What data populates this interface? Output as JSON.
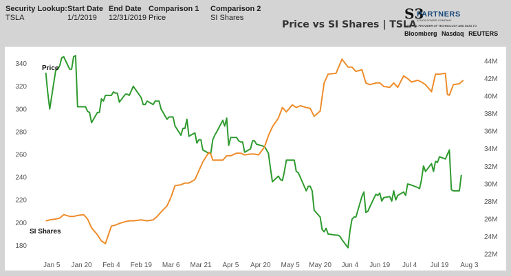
{
  "header": {
    "fields": [
      {
        "label": "Security Lookup:",
        "value": "TSLA"
      },
      {
        "label": "Start Date",
        "value": "1/1/2019"
      },
      {
        "label": "End Date",
        "value": "12/31/2019"
      },
      {
        "label": "Comparison 1",
        "value": "Price"
      },
      {
        "label": "Comparison 2",
        "value": "SI Shares"
      }
    ],
    "title": "Price vs SI Shares | TSLA"
  },
  "brand": {
    "logo_mark": "S3",
    "name": "PARTNERS",
    "tagline": "A DATA POWER COMPANY",
    "provider_line": "OFFICIAL PROVIDER OF TECHNOLOGY AND DATA TO",
    "partners": [
      "Bloomberg",
      "Nasdaq",
      "REUTERS"
    ]
  },
  "chart_data": {
    "type": "line",
    "title": "Price vs SI Shares | TSLA",
    "x_tick_labels": [
      "Jan 5",
      "Jan 20",
      "Feb 4",
      "Feb 19",
      "Mar 6",
      "Mar 21",
      "Apr 5",
      "Apr 20",
      "May 5",
      "May 20",
      "Jun 4",
      "Jun 19",
      "Jul 4",
      "Jul 19",
      "Aug 3"
    ],
    "x_range": [
      "2018-12-29",
      "2019-08-06"
    ],
    "y_left": {
      "ticks": [
        "180",
        "200",
        "220",
        "240",
        "260",
        "280",
        "300",
        "320",
        "340"
      ],
      "range": [
        170,
        350
      ]
    },
    "y_right": {
      "ticks": [
        "22M",
        "24M",
        "26M",
        "28M",
        "30M",
        "32M",
        "34M",
        "36M",
        "38M",
        "40M",
        "42M",
        "44M"
      ],
      "range": [
        21.7,
        45.0
      ]
    },
    "grid": false,
    "legend": "none",
    "annotations": [
      "Price",
      "SI Shares"
    ],
    "series": [
      {
        "label": "Price",
        "axis": "left",
        "color": "#2e9a2e",
        "points": [
          [
            "2019-01-02",
            332
          ],
          [
            "2019-01-03",
            314
          ],
          [
            "2019-01-04",
            300
          ],
          [
            "2019-01-07",
            334
          ],
          [
            "2019-01-08",
            335
          ],
          [
            "2019-01-09",
            338
          ],
          [
            "2019-01-10",
            345
          ],
          [
            "2019-01-11",
            346
          ],
          [
            "2019-01-14",
            335
          ],
          [
            "2019-01-15",
            335
          ],
          [
            "2019-01-16",
            346
          ],
          [
            "2019-01-17",
            347
          ],
          [
            "2019-01-18",
            302
          ],
          [
            "2019-01-22",
            302
          ],
          [
            "2019-01-23",
            298
          ],
          [
            "2019-01-24",
            297
          ],
          [
            "2019-01-25",
            288
          ],
          [
            "2019-01-28",
            297
          ],
          [
            "2019-01-29",
            297
          ],
          [
            "2019-01-30",
            309
          ],
          [
            "2019-01-31",
            307
          ],
          [
            "2019-02-01",
            312
          ],
          [
            "2019-02-04",
            312
          ],
          [
            "2019-02-05",
            315
          ],
          [
            "2019-02-06",
            314
          ],
          [
            "2019-02-07",
            314
          ],
          [
            "2019-02-08",
            306
          ],
          [
            "2019-02-11",
            313
          ],
          [
            "2019-02-12",
            313
          ],
          [
            "2019-02-13",
            312
          ],
          [
            "2019-02-14",
            316
          ],
          [
            "2019-02-15",
            320
          ],
          [
            "2019-02-19",
            310
          ],
          [
            "2019-02-20",
            304
          ],
          [
            "2019-02-21",
            304
          ],
          [
            "2019-02-22",
            307
          ],
          [
            "2019-02-25",
            304
          ],
          [
            "2019-02-26",
            307
          ],
          [
            "2019-02-27",
            307
          ],
          [
            "2019-02-28",
            307
          ],
          [
            "2019-03-01",
            300
          ],
          [
            "2019-03-04",
            291
          ],
          [
            "2019-03-05",
            293
          ],
          [
            "2019-03-06",
            293
          ],
          [
            "2019-03-07",
            293
          ],
          [
            "2019-03-08",
            285
          ],
          [
            "2019-03-11",
            277
          ],
          [
            "2019-03-12",
            283
          ],
          [
            "2019-03-13",
            283
          ],
          [
            "2019-03-14",
            291
          ],
          [
            "2019-03-15",
            276
          ],
          [
            "2019-03-18",
            279
          ],
          [
            "2019-03-19",
            270
          ],
          [
            "2019-03-20",
            273
          ],
          [
            "2019-03-21",
            273
          ],
          [
            "2019-03-22",
            264
          ],
          [
            "2019-03-25",
            261
          ],
          [
            "2019-03-26",
            261
          ],
          [
            "2019-03-27",
            273
          ],
          [
            "2019-03-28",
            277
          ],
          [
            "2019-03-29",
            280
          ],
          [
            "2019-04-01",
            290
          ],
          [
            "2019-04-02",
            285
          ],
          [
            "2019-04-03",
            292
          ],
          [
            "2019-04-04",
            268
          ],
          [
            "2019-04-05",
            275
          ],
          [
            "2019-04-08",
            275
          ],
          [
            "2019-04-09",
            272
          ],
          [
            "2019-04-10",
            271
          ],
          [
            "2019-04-11",
            271
          ],
          [
            "2019-04-12",
            262
          ],
          [
            "2019-04-15",
            265
          ],
          [
            "2019-04-16",
            272
          ],
          [
            "2019-04-17",
            272
          ],
          [
            "2019-04-18",
            269
          ],
          [
            "2019-04-22",
            267
          ],
          [
            "2019-04-23",
            264
          ],
          [
            "2019-04-24",
            261
          ],
          [
            "2019-04-25",
            248
          ],
          [
            "2019-04-26",
            236
          ],
          [
            "2019-04-29",
            241
          ],
          [
            "2019-04-30",
            238
          ],
          [
            "2019-05-01",
            237
          ],
          [
            "2019-05-02",
            245
          ],
          [
            "2019-05-03",
            255
          ],
          [
            "2019-05-06",
            255
          ],
          [
            "2019-05-07",
            255
          ],
          [
            "2019-05-08",
            245
          ],
          [
            "2019-05-09",
            244
          ],
          [
            "2019-05-10",
            240
          ],
          [
            "2019-05-13",
            228
          ],
          [
            "2019-05-14",
            232
          ],
          [
            "2019-05-15",
            232
          ],
          [
            "2019-05-16",
            228
          ],
          [
            "2019-05-17",
            211
          ],
          [
            "2019-05-20",
            205
          ],
          [
            "2019-05-21",
            194
          ],
          [
            "2019-05-22",
            192
          ],
          [
            "2019-05-23",
            195
          ],
          [
            "2019-05-24",
            190
          ],
          [
            "2019-05-28",
            189
          ],
          [
            "2019-05-29",
            189
          ],
          [
            "2019-05-30",
            188
          ],
          [
            "2019-05-31",
            185
          ],
          [
            "2019-06-03",
            178
          ],
          [
            "2019-06-04",
            193
          ],
          [
            "2019-06-05",
            203
          ],
          [
            "2019-06-06",
            205
          ],
          [
            "2019-06-07",
            205
          ],
          [
            "2019-06-10",
            223
          ],
          [
            "2019-06-11",
            227
          ],
          [
            "2019-06-12",
            209
          ],
          [
            "2019-06-13",
            210
          ],
          [
            "2019-06-14",
            214
          ],
          [
            "2019-06-17",
            225
          ],
          [
            "2019-06-18",
            224
          ],
          [
            "2019-06-19",
            226
          ],
          [
            "2019-06-20",
            219
          ],
          [
            "2019-06-21",
            222
          ],
          [
            "2019-06-24",
            223
          ],
          [
            "2019-06-25",
            219
          ],
          [
            "2019-06-26",
            228
          ],
          [
            "2019-06-27",
            220
          ],
          [
            "2019-06-28",
            224
          ],
          [
            "2019-07-01",
            227
          ],
          [
            "2019-07-02",
            224
          ],
          [
            "2019-07-03",
            234
          ],
          [
            "2019-07-05",
            233
          ],
          [
            "2019-07-08",
            231
          ],
          [
            "2019-07-09",
            230
          ],
          [
            "2019-07-10",
            238
          ],
          [
            "2019-07-11",
            250
          ],
          [
            "2019-07-12",
            245
          ],
          [
            "2019-07-15",
            252
          ],
          [
            "2019-07-16",
            245
          ],
          [
            "2019-07-17",
            254
          ],
          [
            "2019-07-18",
            253
          ],
          [
            "2019-07-19",
            258
          ],
          [
            "2019-07-22",
            256
          ],
          [
            "2019-07-23",
            260
          ],
          [
            "2019-07-24",
            264
          ],
          [
            "2019-07-25",
            229
          ],
          [
            "2019-07-26",
            228
          ],
          [
            "2019-07-29",
            228
          ],
          [
            "2019-07-30",
            242
          ]
        ]
      },
      {
        "label": "SI Shares",
        "axis": "right",
        "color": "#ee8c2a",
        "points": [
          [
            "2019-01-02",
            25.8
          ],
          [
            "2019-01-04",
            25.9
          ],
          [
            "2019-01-07",
            26.0
          ],
          [
            "2019-01-09",
            26.1
          ],
          [
            "2019-01-11",
            26.5
          ],
          [
            "2019-01-14",
            26.3
          ],
          [
            "2019-01-16",
            26.3
          ],
          [
            "2019-01-18",
            26.4
          ],
          [
            "2019-01-21",
            26.5
          ],
          [
            "2019-01-23",
            26.0
          ],
          [
            "2019-01-25",
            25.0
          ],
          [
            "2019-01-28",
            24.2
          ],
          [
            "2019-01-30",
            23.5
          ],
          [
            "2019-02-01",
            23.2
          ],
          [
            "2019-02-04",
            25.2
          ],
          [
            "2019-02-06",
            25.3
          ],
          [
            "2019-02-08",
            25.5
          ],
          [
            "2019-02-11",
            25.7
          ],
          [
            "2019-02-13",
            25.8
          ],
          [
            "2019-02-15",
            25.8
          ],
          [
            "2019-02-19",
            25.9
          ],
          [
            "2019-02-22",
            25.8
          ],
          [
            "2019-02-25",
            25.9
          ],
          [
            "2019-02-27",
            26.3
          ],
          [
            "2019-03-01",
            26.8
          ],
          [
            "2019-03-04",
            27.5
          ],
          [
            "2019-03-06",
            28.5
          ],
          [
            "2019-03-08",
            29.8
          ],
          [
            "2019-03-11",
            29.9
          ],
          [
            "2019-03-13",
            30.1
          ],
          [
            "2019-03-15",
            30.1
          ],
          [
            "2019-03-18",
            30.5
          ],
          [
            "2019-03-20",
            31.5
          ],
          [
            "2019-03-22",
            32.5
          ],
          [
            "2019-03-25",
            33.6
          ],
          [
            "2019-03-26",
            33.4
          ],
          [
            "2019-03-27",
            32.7
          ],
          [
            "2019-03-29",
            32.7
          ],
          [
            "2019-04-01",
            32.7
          ],
          [
            "2019-04-03",
            33.2
          ],
          [
            "2019-04-05",
            33.2
          ],
          [
            "2019-04-08",
            33.5
          ],
          [
            "2019-04-10",
            33.5
          ],
          [
            "2019-04-12",
            33.3
          ],
          [
            "2019-04-15",
            33.4
          ],
          [
            "2019-04-17",
            33.4
          ],
          [
            "2019-04-19",
            33.3
          ],
          [
            "2019-04-22",
            34.2
          ],
          [
            "2019-04-24",
            35.5
          ],
          [
            "2019-04-26",
            36.5
          ],
          [
            "2019-04-29",
            37.5
          ],
          [
            "2019-05-01",
            38.7
          ],
          [
            "2019-05-03",
            38.2
          ],
          [
            "2019-05-06",
            39.0
          ],
          [
            "2019-05-08",
            38.7
          ],
          [
            "2019-05-10",
            38.9
          ],
          [
            "2019-05-13",
            38.7
          ],
          [
            "2019-05-15",
            38.6
          ],
          [
            "2019-05-17",
            37.7
          ],
          [
            "2019-05-20",
            38.3
          ],
          [
            "2019-05-22",
            41.5
          ],
          [
            "2019-05-24",
            42.5
          ],
          [
            "2019-05-28",
            42.6
          ],
          [
            "2019-05-31",
            44.2
          ],
          [
            "2019-06-03",
            43.3
          ],
          [
            "2019-06-05",
            43.3
          ],
          [
            "2019-06-07",
            42.8
          ],
          [
            "2019-06-10",
            43.0
          ],
          [
            "2019-06-12",
            41.5
          ],
          [
            "2019-06-14",
            41.3
          ],
          [
            "2019-06-17",
            41.5
          ],
          [
            "2019-06-19",
            41.5
          ],
          [
            "2019-06-21",
            41.1
          ],
          [
            "2019-06-24",
            41.0
          ],
          [
            "2019-06-26",
            41.5
          ],
          [
            "2019-06-28",
            41.0
          ],
          [
            "2019-07-01",
            42.3
          ],
          [
            "2019-07-03",
            42.0
          ],
          [
            "2019-07-05",
            41.6
          ],
          [
            "2019-07-08",
            41.8
          ],
          [
            "2019-07-10",
            41.6
          ],
          [
            "2019-07-12",
            41.3
          ],
          [
            "2019-07-15",
            40.5
          ],
          [
            "2019-07-17",
            42.5
          ],
          [
            "2019-07-19",
            42.5
          ],
          [
            "2019-07-22",
            42.6
          ],
          [
            "2019-07-23",
            40.2
          ],
          [
            "2019-07-24",
            40.1
          ],
          [
            "2019-07-26",
            41.3
          ],
          [
            "2019-07-29",
            41.4
          ],
          [
            "2019-07-31",
            41.8
          ]
        ]
      }
    ]
  }
}
